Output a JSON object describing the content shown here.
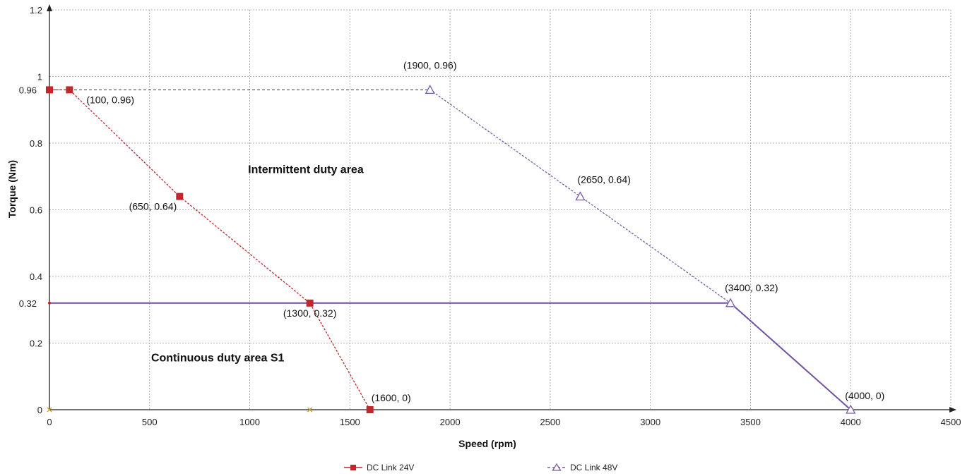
{
  "chart_data": {
    "type": "line",
    "xlabel": "Speed (rpm)",
    "ylabel": "Torque (Nm)",
    "xlim": [
      0,
      4500
    ],
    "ylim": [
      0,
      1.2
    ],
    "x_ticks": [
      "0",
      "500",
      "1000",
      "1500",
      "2000",
      "2500",
      "3000",
      "3500",
      "4000",
      "4500"
    ],
    "y_ticks": [
      "0",
      "0.2",
      "0.4",
      "0.6",
      "0.8",
      "1",
      "1.2"
    ],
    "y_extra_ticks": [
      {
        "value": 0.96,
        "label": "0.96"
      },
      {
        "value": 0.32,
        "label": "0.32"
      }
    ],
    "grid": true,
    "legend_placement": "bottom",
    "series": [
      {
        "name": "DC Link 24V",
        "color": "#c0272d",
        "marker": "square",
        "points": [
          {
            "x": 0,
            "y": 0.96
          },
          {
            "x": 100,
            "y": 0.96
          },
          {
            "x": 650,
            "y": 0.64
          },
          {
            "x": 1300,
            "y": 0.32
          },
          {
            "x": 1600,
            "y": 0
          }
        ]
      },
      {
        "name": "DC Link 48V",
        "color": "#7a5ca8",
        "marker": "triangle",
        "points": [
          {
            "x": 1900,
            "y": 0.96
          },
          {
            "x": 2650,
            "y": 0.64
          },
          {
            "x": 3400,
            "y": 0.32
          },
          {
            "x": 4000,
            "y": 0
          }
        ]
      }
    ],
    "reference_lines": [
      {
        "kind": "dashed",
        "color": "#333333",
        "from": {
          "x": 0,
          "y": 0.96
        },
        "to": {
          "x": 1900,
          "y": 0.96
        }
      },
      {
        "kind": "solid",
        "color": "#6a4c9c",
        "from": {
          "x": 0,
          "y": 0.32
        },
        "to": {
          "x": 3400,
          "y": 0.32
        }
      },
      {
        "kind": "solid",
        "color": "#6a4c9c",
        "from": {
          "x": 3400,
          "y": 0.32
        },
        "to": {
          "x": 4000,
          "y": 0
        }
      }
    ],
    "baseline_markers": [
      {
        "x": 0,
        "y": 0
      },
      {
        "x": 1300,
        "y": 0
      }
    ],
    "point_labels": [
      {
        "text": "(100, 0.96)",
        "x": 100,
        "y": 0.96
      },
      {
        "text": "(650, 0.64)",
        "x": 650,
        "y": 0.64
      },
      {
        "text": "(1300, 0.32)",
        "x": 1300,
        "y": 0.32
      },
      {
        "text": "(1600, 0)",
        "x": 1600,
        "y": 0
      },
      {
        "text": "(1900, 0.96)",
        "x": 1900,
        "y": 0.96
      },
      {
        "text": "(2650, 0.64)",
        "x": 2650,
        "y": 0.64
      },
      {
        "text": "(3400, 0.32)",
        "x": 3400,
        "y": 0.32
      },
      {
        "text": "(4000, 0)",
        "x": 4000,
        "y": 0
      }
    ],
    "annotations": [
      {
        "text": "Intermittent duty area",
        "x": 1280,
        "y": 0.71
      },
      {
        "text": "Continuous duty area S1",
        "x": 840,
        "y": 0.145
      }
    ]
  }
}
